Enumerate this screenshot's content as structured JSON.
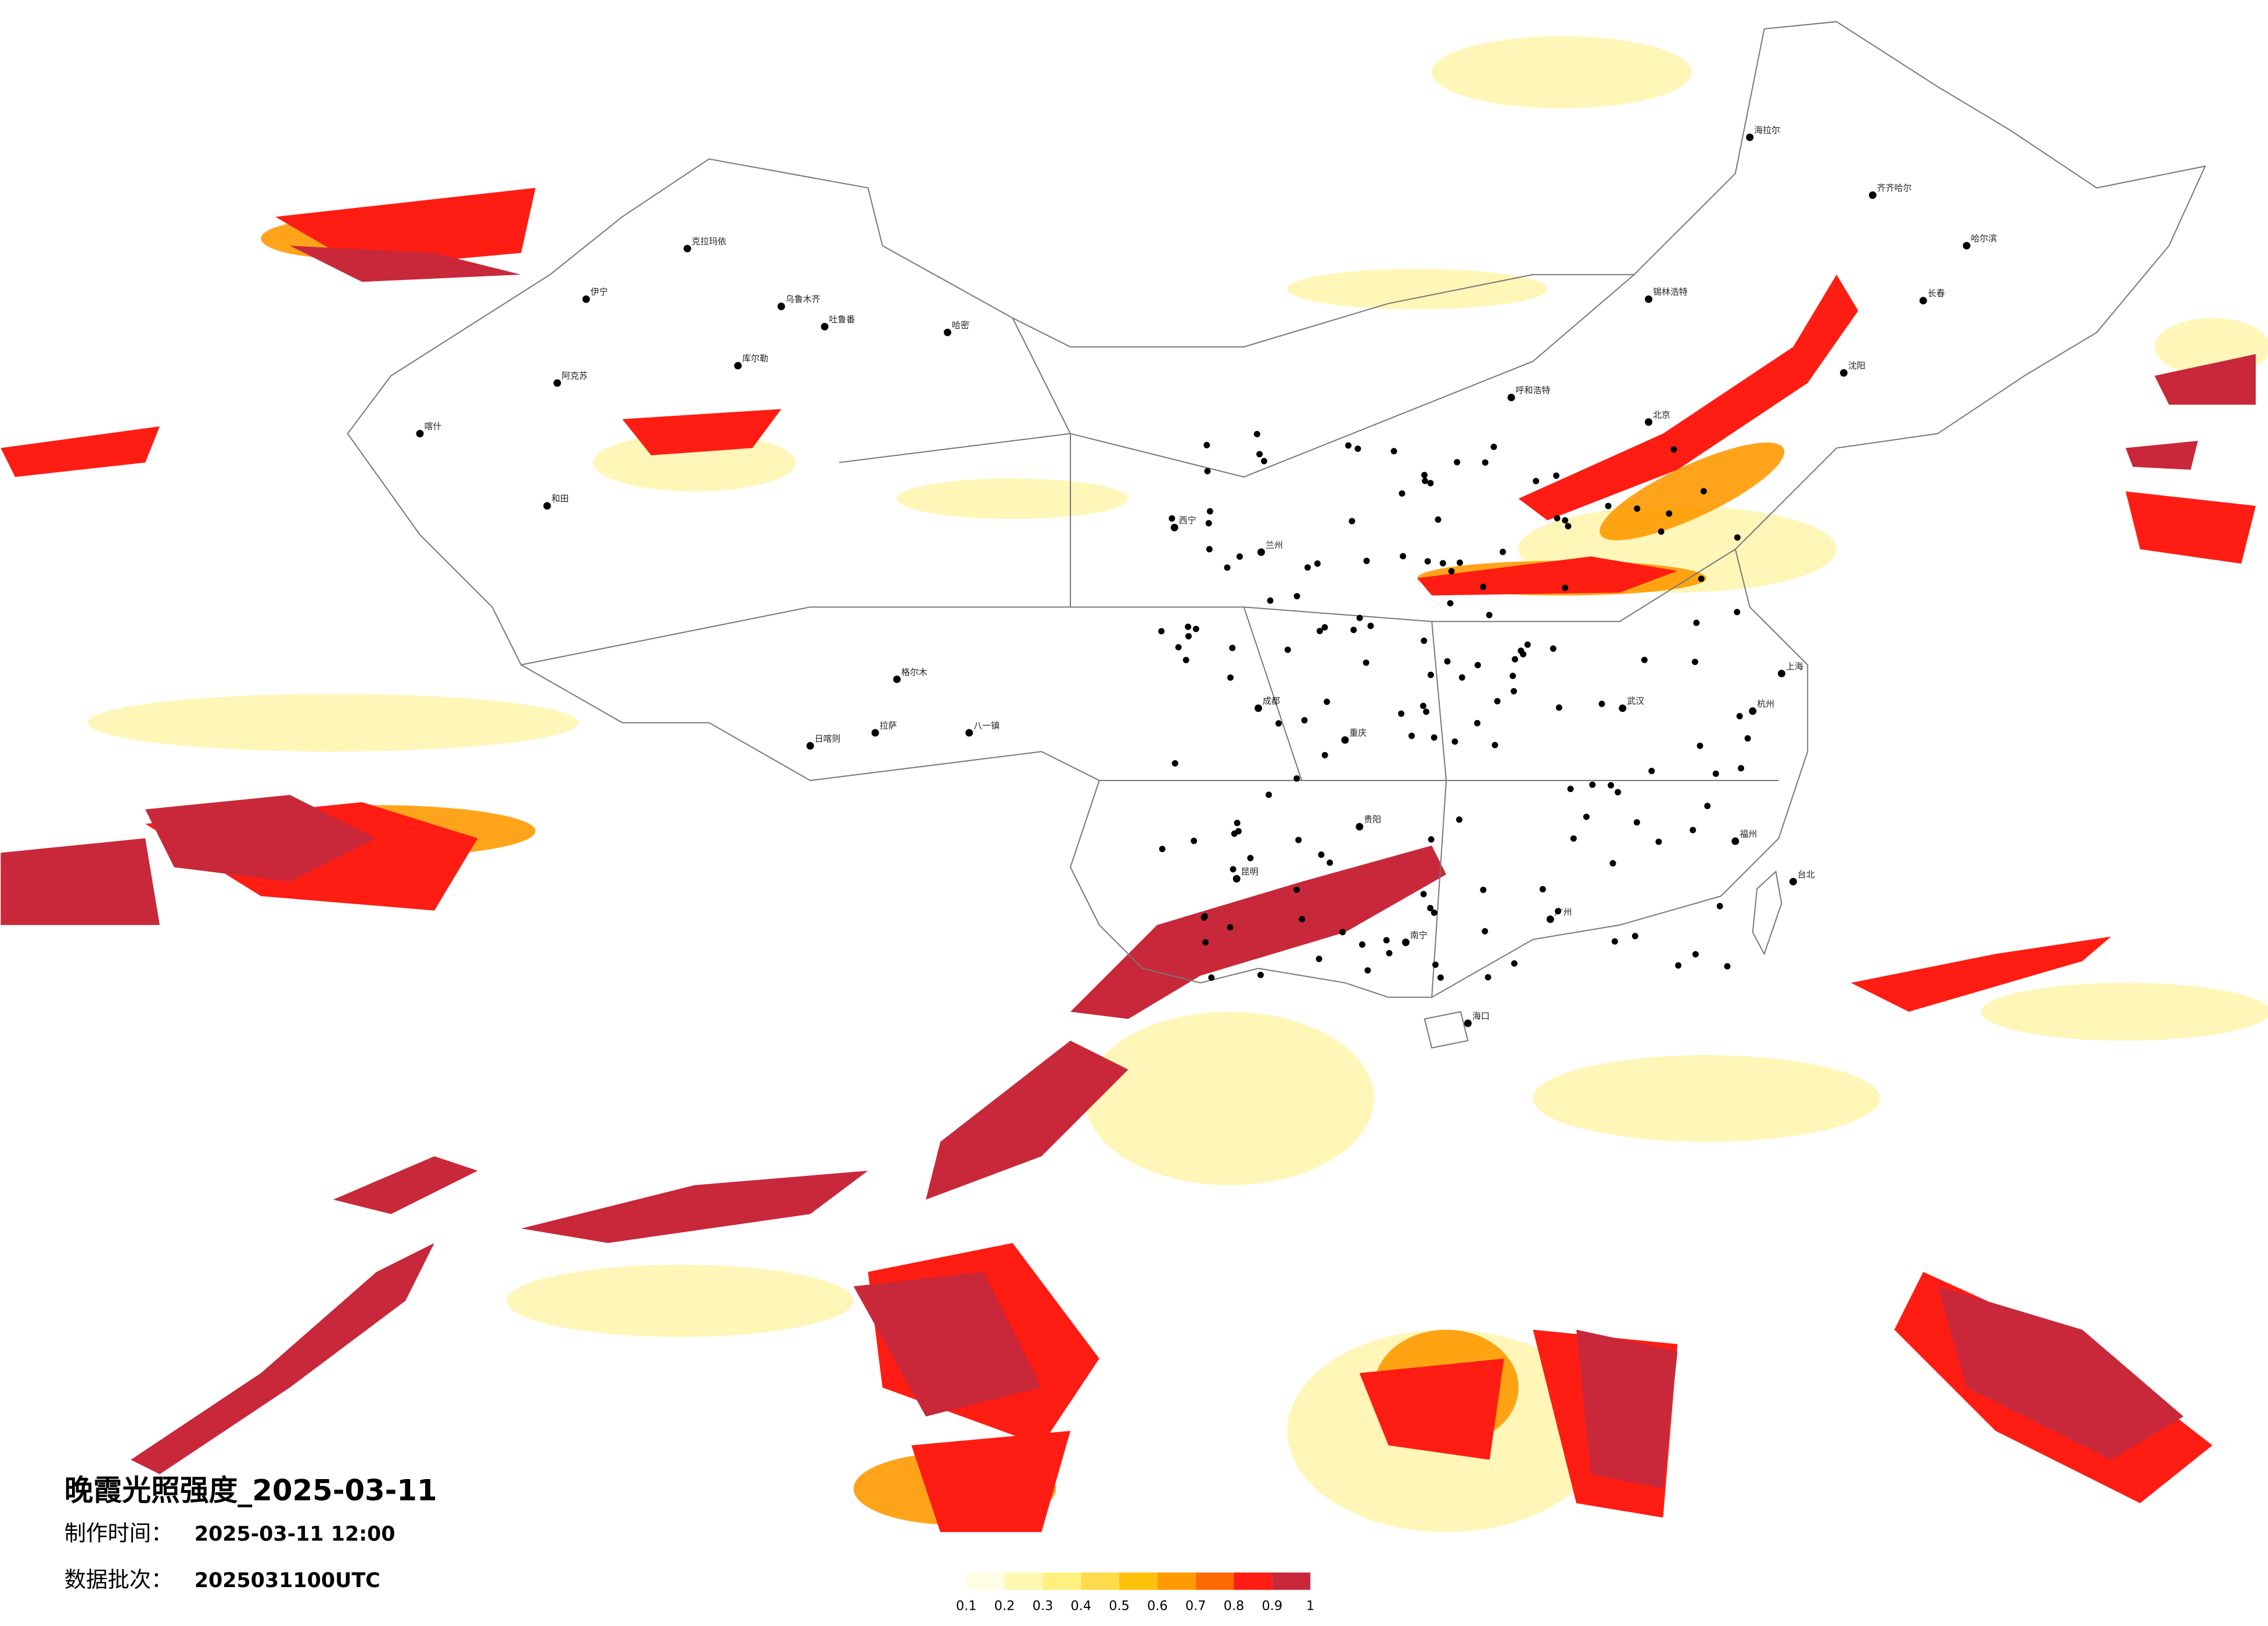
{
  "title": "晚霞光照强度_2025-03-11",
  "info": [
    {
      "label": "制作时间：",
      "value": "2025-03-11 12:00"
    },
    {
      "label": "数据批次：",
      "value": "2025031100UTC"
    }
  ],
  "colorbar": {
    "ticks": [
      0.1,
      0.2,
      0.3,
      0.4,
      0.5,
      0.6,
      0.7,
      0.8,
      0.9,
      1
    ],
    "colors": [
      "#fffde3",
      "#fff8b4",
      "#fff080",
      "#ffda4d",
      "#ffc20a",
      "#ff9a00",
      "#ff6a00",
      "#ff1c12",
      "#c8283a"
    ]
  },
  "cities": [
    "克拉玛依",
    "乌鲁木齐",
    "伊宁",
    "库尔勒",
    "阿克苏",
    "和田",
    "喀什",
    "哈密",
    "吐鲁番",
    "格尔木",
    "拉萨",
    "日喀则",
    "八一镇",
    "西宁",
    "海拉尔",
    "齐齐哈尔",
    "哈尔滨",
    "长春",
    "沈阳",
    "北京",
    "呼和浩特",
    "锡林浩特",
    "兰州",
    "成都",
    "重庆",
    "贵阳",
    "昆明",
    "南宁",
    "广州",
    "海口",
    "武汉",
    "上海",
    "杭州",
    "福州",
    "台北"
  ]
}
